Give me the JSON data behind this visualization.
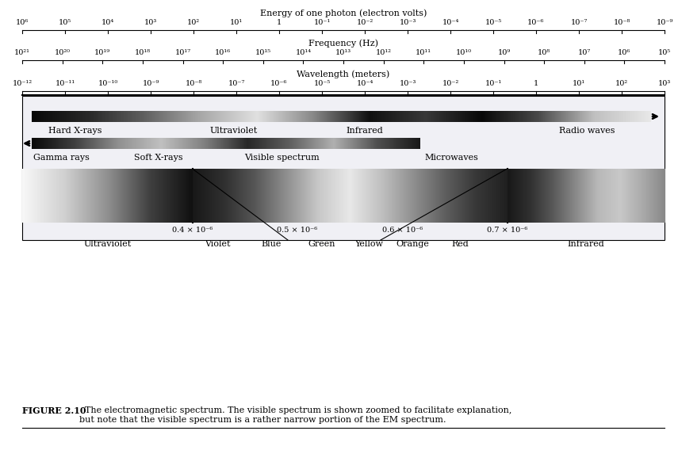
{
  "fig_width": 8.55,
  "fig_height": 5.68,
  "energy_label": "Energy of one photon (electron volts)",
  "energy_ticks": [
    "10⁶",
    "10⁵",
    "10⁴",
    "10³",
    "10²",
    "10¹",
    "1",
    "10⁻¹",
    "10⁻²",
    "10⁻³",
    "10⁻⁴",
    "10⁻⁵",
    "10⁻⁶",
    "10⁻⁷",
    "10⁻⁸",
    "10⁻⁹"
  ],
  "freq_label": "Frequency (Hz)",
  "freq_ticks": [
    "10²¹",
    "10²⁰",
    "10¹⁹",
    "10¹⁸",
    "10¹⁷",
    "10¹⁶",
    "10¹⁵",
    "10¹⁴",
    "10¹³",
    "10¹²",
    "10¹¹",
    "10¹⁰",
    "10⁹",
    "10⁸",
    "10⁷",
    "10⁶",
    "10⁵"
  ],
  "wave_label": "Wavelength (meters)",
  "wave_ticks": [
    "10⁻¹²",
    "10⁻¹¹",
    "10⁻¹⁰",
    "10⁻⁹",
    "10⁻⁸",
    "10⁻⁷",
    "10⁻⁶",
    "10⁻⁵",
    "10⁻⁴",
    "10⁻³",
    "10⁻²",
    "10⁻¹",
    "1",
    "10¹",
    "10²",
    "10³"
  ],
  "zoom_tick_labels": [
    "0.4 × 10⁻⁶",
    "0.5 × 10⁻⁶",
    "0.6 × 10⁻⁶",
    "0.7 × 10⁻⁶"
  ],
  "zoom_bot_labels": [
    "Ultraviolet",
    "Violet",
    "Blue",
    "Green",
    "Yellow",
    "Orange",
    "Red",
    "Infrared"
  ],
  "caption_bold": "FIGURE 2.10",
  "caption_text": "  The electromagnetic spectrum. The visible spectrum is shown zoomed to facilitate explanation,\nbut note that the visible spectrum is a rather narrow portion of the EM spectrum.",
  "ruler_fontsize": 7.0,
  "label_fontsize": 8.5,
  "spec_fontsize": 8.0
}
